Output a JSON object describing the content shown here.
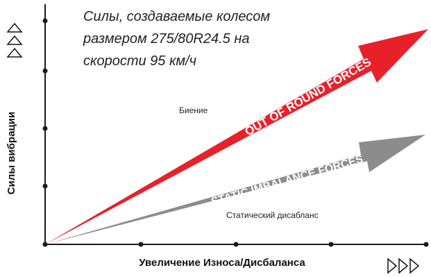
{
  "title_lines": [
    "Силы, создаваемые колесом",
    "размером 275/80R24.5 на",
    "скорости 95 км/ч"
  ],
  "axes": {
    "y_label": "Силы вибрации",
    "x_label": "Увеличение Износа/Дисбаланса"
  },
  "arrows": {
    "out_of_round": {
      "text": "OUT OF ROUND FORCES",
      "color": "#e8202a"
    },
    "static_imbalance": {
      "text": "STATIC IMBALANCE FORCES",
      "color": "#8c8c8c"
    }
  },
  "labels": {
    "runout": "Биение",
    "static_imbalance": "Статический дисабланс"
  },
  "icons": {
    "y_axis": "triple-up-triangle-outline-icon",
    "x_axis": "triple-right-triangle-outline-icon"
  },
  "colors": {
    "axis": "#1a1a1a",
    "red": "#e8202a",
    "gray": "#8c8c8c"
  }
}
